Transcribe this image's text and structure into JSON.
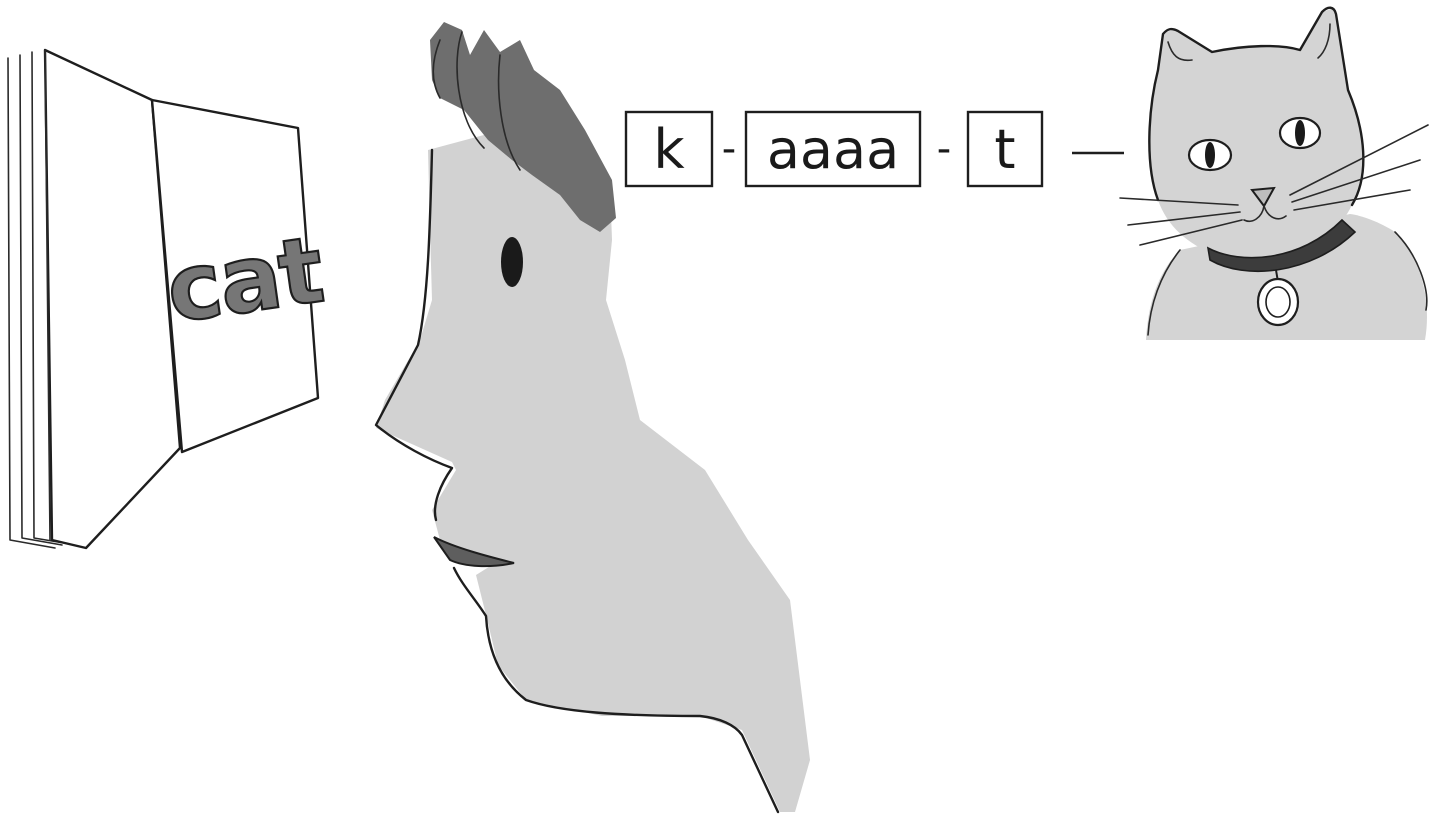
{
  "book": {
    "word": "cat"
  },
  "sounds": [
    {
      "text": "k"
    },
    {
      "text": "aaaa"
    },
    {
      "text": "t"
    }
  ],
  "separators": [
    "-",
    "-"
  ],
  "colors": {
    "ink": "#1e1e1e",
    "wash": "#d2d2d2",
    "hair": "#6e6e6e",
    "word_fill": "#767676",
    "collar": "#3c3c3c"
  }
}
